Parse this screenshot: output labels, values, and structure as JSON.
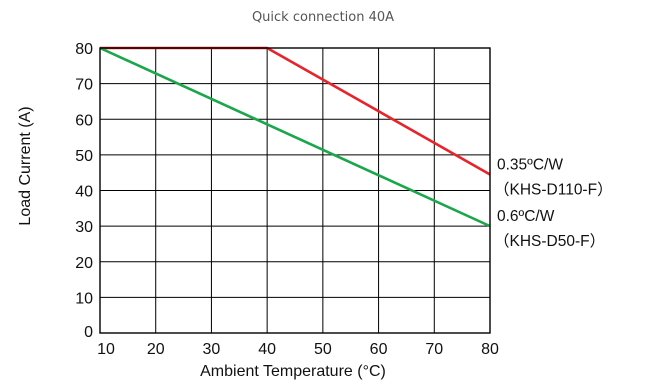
{
  "chart_data": {
    "type": "line",
    "title": "Quick connection 40A",
    "xlabel": "Ambient Temperature (°C)",
    "ylabel": "Load Current (A)",
    "xlim": [
      10,
      80
    ],
    "ylim": [
      0,
      80
    ],
    "x_ticks": [
      "10",
      "20",
      "30",
      "40",
      "50",
      "60",
      "70",
      "80"
    ],
    "y_ticks": [
      "0",
      "10",
      "20",
      "30",
      "40",
      "50",
      "60",
      "70",
      "80"
    ],
    "grid": true,
    "series": [
      {
        "name": "0.35ºC/W",
        "model": "（KHS-D110-F）",
        "color": "#e8232a",
        "points": [
          [
            10,
            80
          ],
          [
            40,
            80
          ],
          [
            80,
            44.5
          ]
        ]
      },
      {
        "name": "0.6ºC/W",
        "model": "（KHS-D50-F）",
        "color": "#1aa64a",
        "points": [
          [
            10,
            80
          ],
          [
            80,
            30
          ]
        ]
      }
    ]
  }
}
